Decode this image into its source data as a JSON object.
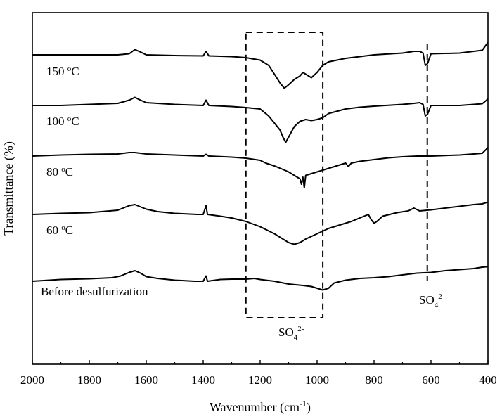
{
  "chart_data": {
    "type": "line",
    "xlabel": "Wavenumber (cm",
    "xlabel_sup": "-1",
    "xlabel_close": ")",
    "ylabel": "Transmittance (%)",
    "xlim": [
      2000,
      400
    ],
    "x_reversed": true,
    "y_ticks_labeled": false,
    "x_ticks": [
      2000,
      1800,
      1600,
      1400,
      1200,
      1000,
      800,
      600,
      400
    ],
    "x_tick_labels": [
      "2000",
      "1800",
      "1600",
      "1400",
      "1200",
      "1000",
      "800",
      "600",
      "400"
    ],
    "series": [
      {
        "name": "150 oC",
        "label_main": "150 ",
        "label_sup": "o",
        "label_tail": "C",
        "points": [
          [
            2000,
            0.0
          ],
          [
            1900,
            0.0
          ],
          [
            1800,
            0.0
          ],
          [
            1700,
            0.0
          ],
          [
            1660,
            0.3
          ],
          [
            1640,
            1.5
          ],
          [
            1620,
            0.8
          ],
          [
            1600,
            0.0
          ],
          [
            1500,
            -0.2
          ],
          [
            1400,
            -0.3
          ],
          [
            1390,
            1.0
          ],
          [
            1380,
            -0.3
          ],
          [
            1300,
            -0.5
          ],
          [
            1250,
            -0.8
          ],
          [
            1200,
            -1.5
          ],
          [
            1170,
            -3.0
          ],
          [
            1150,
            -5.5
          ],
          [
            1130,
            -8.0
          ],
          [
            1115,
            -9.5
          ],
          [
            1100,
            -8.5
          ],
          [
            1080,
            -7.0
          ],
          [
            1060,
            -6.0
          ],
          [
            1050,
            -5.0
          ],
          [
            1040,
            -5.5
          ],
          [
            1020,
            -6.5
          ],
          [
            1000,
            -5.0
          ],
          [
            980,
            -3.0
          ],
          [
            960,
            -2.0
          ],
          [
            900,
            -1.0
          ],
          [
            850,
            -0.5
          ],
          [
            800,
            0.0
          ],
          [
            700,
            0.5
          ],
          [
            660,
            1.0
          ],
          [
            640,
            1.0
          ],
          [
            628,
            0.5
          ],
          [
            620,
            -3.0
          ],
          [
            612,
            -2.5
          ],
          [
            600,
            0.3
          ],
          [
            500,
            0.5
          ],
          [
            450,
            1.0
          ],
          [
            420,
            1.3
          ],
          [
            405,
            3.0
          ],
          [
            400,
            3.5
          ]
        ]
      },
      {
        "name": "100 oC",
        "label_main": "100 ",
        "label_sup": "o",
        "label_tail": "C",
        "points": [
          [
            2000,
            0.0
          ],
          [
            1900,
            0.0
          ],
          [
            1800,
            0.3
          ],
          [
            1700,
            0.6
          ],
          [
            1660,
            1.5
          ],
          [
            1640,
            2.3
          ],
          [
            1620,
            1.5
          ],
          [
            1600,
            0.8
          ],
          [
            1500,
            0.3
          ],
          [
            1400,
            0.0
          ],
          [
            1390,
            1.5
          ],
          [
            1380,
            0.0
          ],
          [
            1300,
            -0.3
          ],
          [
            1250,
            -0.6
          ],
          [
            1200,
            -1.0
          ],
          [
            1170,
            -3.0
          ],
          [
            1150,
            -5.0
          ],
          [
            1130,
            -7.0
          ],
          [
            1120,
            -9.0
          ],
          [
            1110,
            -10.5
          ],
          [
            1100,
            -9.0
          ],
          [
            1080,
            -6.0
          ],
          [
            1060,
            -4.5
          ],
          [
            1040,
            -4.0
          ],
          [
            1020,
            -4.3
          ],
          [
            1000,
            -4.0
          ],
          [
            980,
            -3.5
          ],
          [
            960,
            -2.3
          ],
          [
            900,
            -1.0
          ],
          [
            850,
            -0.5
          ],
          [
            800,
            -0.2
          ],
          [
            700,
            0.3
          ],
          [
            660,
            0.6
          ],
          [
            640,
            0.8
          ],
          [
            628,
            0.3
          ],
          [
            620,
            -3.0
          ],
          [
            612,
            -2.5
          ],
          [
            600,
            0.0
          ],
          [
            500,
            0.0
          ],
          [
            450,
            0.3
          ],
          [
            420,
            0.5
          ],
          [
            405,
            1.5
          ],
          [
            400,
            2.0
          ]
        ]
      },
      {
        "name": "80 oC",
        "label_main": "80 ",
        "label_sup": "o",
        "label_tail": "C",
        "points": [
          [
            2000,
            0.0
          ],
          [
            1900,
            0.3
          ],
          [
            1800,
            0.5
          ],
          [
            1700,
            0.6
          ],
          [
            1660,
            1.0
          ],
          [
            1640,
            1.0
          ],
          [
            1600,
            0.6
          ],
          [
            1500,
            0.3
          ],
          [
            1400,
            0.0
          ],
          [
            1390,
            0.5
          ],
          [
            1380,
            0.0
          ],
          [
            1300,
            -0.3
          ],
          [
            1250,
            -0.6
          ],
          [
            1200,
            -1.2
          ],
          [
            1180,
            -2.0
          ],
          [
            1150,
            -2.8
          ],
          [
            1120,
            -3.8
          ],
          [
            1100,
            -4.5
          ],
          [
            1080,
            -5.5
          ],
          [
            1060,
            -6.5
          ],
          [
            1055,
            -8.0
          ],
          [
            1050,
            -6.0
          ],
          [
            1045,
            -9.0
          ],
          [
            1040,
            -5.5
          ],
          [
            1020,
            -5.0
          ],
          [
            1000,
            -4.5
          ],
          [
            980,
            -4.0
          ],
          [
            960,
            -3.5
          ],
          [
            940,
            -3.0
          ],
          [
            900,
            -2.0
          ],
          [
            890,
            -3.0
          ],
          [
            880,
            -2.0
          ],
          [
            850,
            -1.5
          ],
          [
            800,
            -1.0
          ],
          [
            750,
            -0.5
          ],
          [
            700,
            -0.2
          ],
          [
            650,
            0.0
          ],
          [
            600,
            0.0
          ],
          [
            500,
            0.3
          ],
          [
            450,
            0.6
          ],
          [
            420,
            0.8
          ],
          [
            405,
            2.0
          ],
          [
            400,
            2.5
          ]
        ]
      },
      {
        "name": "60 oC",
        "label_main": "60 ",
        "label_sup": "o",
        "label_tail": "C",
        "points": [
          [
            2000,
            0.0
          ],
          [
            1900,
            0.3
          ],
          [
            1800,
            0.5
          ],
          [
            1700,
            1.2
          ],
          [
            1660,
            2.5
          ],
          [
            1640,
            2.8
          ],
          [
            1600,
            1.5
          ],
          [
            1560,
            0.8
          ],
          [
            1500,
            0.3
          ],
          [
            1420,
            0.0
          ],
          [
            1400,
            0.0
          ],
          [
            1390,
            2.5
          ],
          [
            1385,
            0.0
          ],
          [
            1340,
            -0.5
          ],
          [
            1300,
            -1.0
          ],
          [
            1250,
            -2.0
          ],
          [
            1200,
            -3.5
          ],
          [
            1150,
            -5.5
          ],
          [
            1120,
            -7.0
          ],
          [
            1100,
            -8.0
          ],
          [
            1080,
            -8.5
          ],
          [
            1060,
            -8.0
          ],
          [
            1040,
            -7.0
          ],
          [
            1000,
            -5.5
          ],
          [
            960,
            -4.0
          ],
          [
            920,
            -3.0
          ],
          [
            880,
            -2.0
          ],
          [
            850,
            -1.0
          ],
          [
            820,
            0.0
          ],
          [
            810,
            -1.5
          ],
          [
            800,
            -2.5
          ],
          [
            790,
            -2.0
          ],
          [
            770,
            -0.5
          ],
          [
            720,
            0.5
          ],
          [
            680,
            1.0
          ],
          [
            660,
            1.8
          ],
          [
            640,
            1.0
          ],
          [
            600,
            1.3
          ],
          [
            550,
            1.8
          ],
          [
            500,
            2.3
          ],
          [
            450,
            2.8
          ],
          [
            420,
            3.0
          ],
          [
            405,
            3.4
          ],
          [
            400,
            3.5
          ]
        ]
      },
      {
        "name": "Before desulfurization",
        "label_main": "Before desulfurization",
        "label_sup": "",
        "label_tail": "",
        "points": [
          [
            2000,
            0.0
          ],
          [
            1900,
            0.5
          ],
          [
            1800,
            0.7
          ],
          [
            1720,
            1.0
          ],
          [
            1690,
            1.5
          ],
          [
            1660,
            2.5
          ],
          [
            1640,
            3.0
          ],
          [
            1620,
            2.3
          ],
          [
            1600,
            1.3
          ],
          [
            1560,
            0.8
          ],
          [
            1500,
            0.3
          ],
          [
            1430,
            0.0
          ],
          [
            1400,
            0.0
          ],
          [
            1390,
            1.5
          ],
          [
            1385,
            0.0
          ],
          [
            1340,
            0.5
          ],
          [
            1300,
            0.6
          ],
          [
            1250,
            0.6
          ],
          [
            1220,
            0.8
          ],
          [
            1200,
            0.5
          ],
          [
            1150,
            0.0
          ],
          [
            1100,
            -0.8
          ],
          [
            1050,
            -1.2
          ],
          [
            1020,
            -1.5
          ],
          [
            1000,
            -2.0
          ],
          [
            980,
            -2.5
          ],
          [
            960,
            -2.0
          ],
          [
            940,
            -0.5
          ],
          [
            900,
            0.3
          ],
          [
            850,
            0.8
          ],
          [
            800,
            1.0
          ],
          [
            750,
            1.3
          ],
          [
            700,
            1.8
          ],
          [
            650,
            2.3
          ],
          [
            600,
            2.5
          ],
          [
            550,
            3.0
          ],
          [
            500,
            3.3
          ],
          [
            450,
            3.6
          ],
          [
            420,
            4.0
          ],
          [
            405,
            4.1
          ],
          [
            400,
            4.2
          ]
        ]
      }
    ],
    "annotations": [
      {
        "text_main": "SO",
        "text_sub": "4",
        "text_sup": "2-",
        "target": "box 1250–980 cm-1"
      },
      {
        "text_main": "SO",
        "text_sub": "4",
        "text_sup": "2-",
        "target": "line at 613 cm-1"
      }
    ],
    "highlight_box": {
      "x_from": 1250,
      "x_to": 980
    },
    "marker_line": {
      "x": 613
    }
  }
}
